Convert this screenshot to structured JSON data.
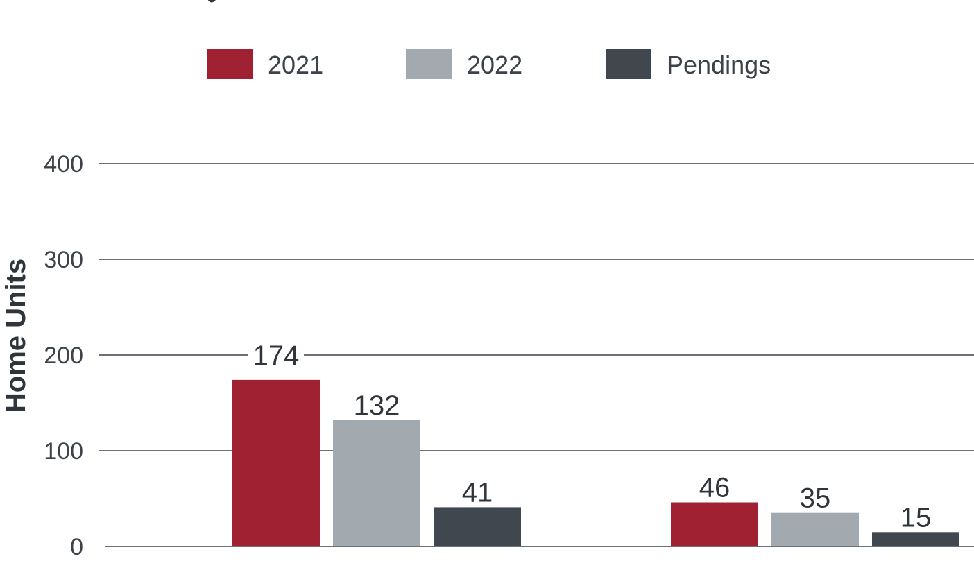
{
  "chart_data": {
    "type": "bar",
    "categories": [
      "",
      ""
    ],
    "series": [
      {
        "name": "2021",
        "color": "#a02131",
        "values": [
          174,
          46
        ]
      },
      {
        "name": "2022",
        "color": "#a2aaaf",
        "values": [
          132,
          35
        ]
      },
      {
        "name": "Pendings",
        "color": "#40474e",
        "values": [
          41,
          15
        ]
      }
    ],
    "data_labels": [
      [
        "174",
        "46"
      ],
      [
        "132",
        "35"
      ],
      [
        "41",
        "15"
      ]
    ],
    "ylabel": "Home Units",
    "ylim": [
      0,
      400
    ],
    "yticks": [
      0,
      100,
      200,
      300,
      400
    ],
    "grid": true,
    "legend_position": "top"
  }
}
